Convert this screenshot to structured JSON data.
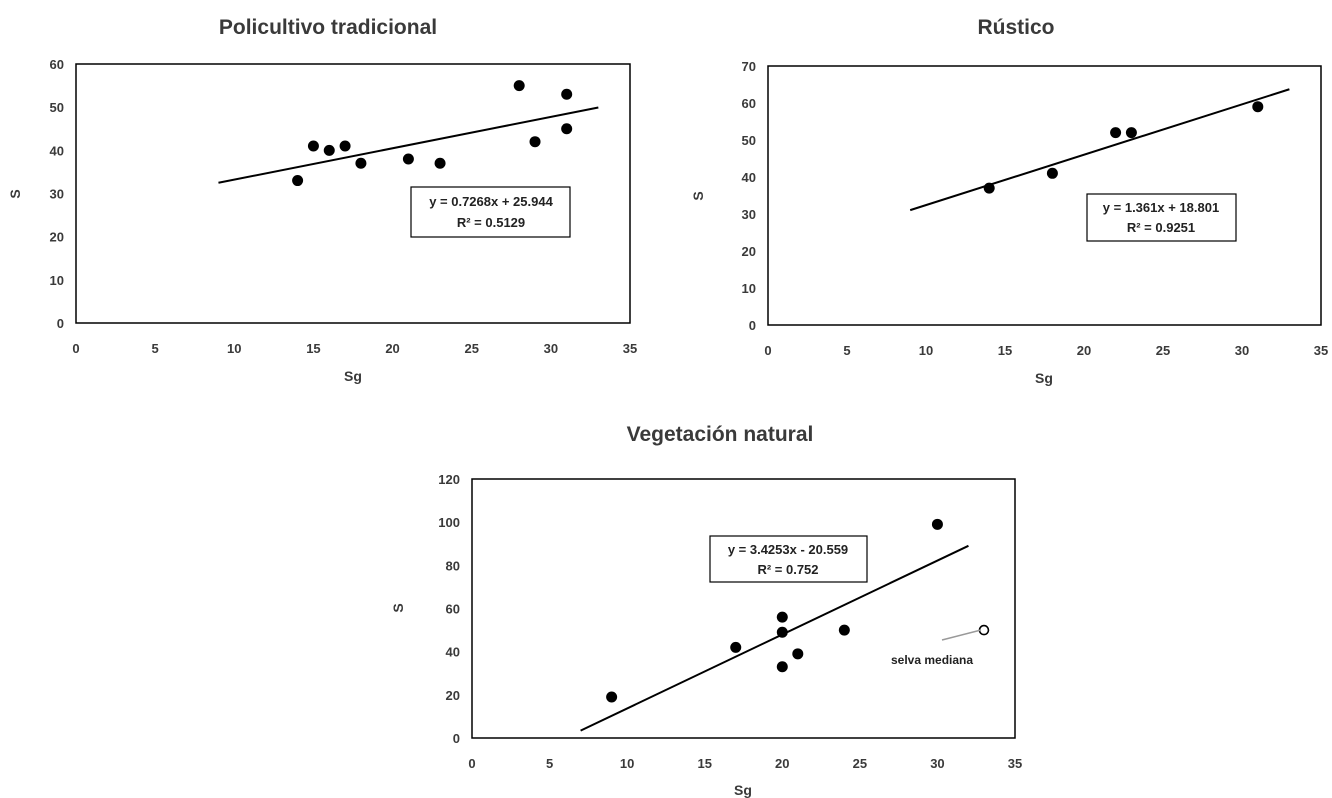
{
  "chart_data": [
    {
      "type": "scatter",
      "title": "Policultivo tradicional",
      "xlabel": "Sg",
      "ylabel": "S",
      "xlim": [
        0,
        35
      ],
      "ylim": [
        0,
        60
      ],
      "xticks": [
        0,
        5,
        10,
        15,
        20,
        25,
        30,
        35
      ],
      "yticks": [
        0,
        10,
        20,
        30,
        40,
        50,
        60
      ],
      "points": [
        {
          "x": 14,
          "y": 33
        },
        {
          "x": 15,
          "y": 41
        },
        {
          "x": 16,
          "y": 40
        },
        {
          "x": 17,
          "y": 41
        },
        {
          "x": 18,
          "y": 37
        },
        {
          "x": 21,
          "y": 38
        },
        {
          "x": 23,
          "y": 37
        },
        {
          "x": 28,
          "y": 55
        },
        {
          "x": 29,
          "y": 42
        },
        {
          "x": 31,
          "y": 53
        },
        {
          "x": 31,
          "y": 45
        }
      ],
      "trendline": {
        "slope": 0.7268,
        "intercept": 25.944,
        "x_range": [
          9,
          33
        ]
      },
      "equation": "y = 0.7268x + 25.944",
      "r2": "R² = 0.5129",
      "grid": false
    },
    {
      "type": "scatter",
      "title": "Rústico",
      "xlabel": "Sg",
      "ylabel": "S",
      "xlim": [
        0,
        35
      ],
      "ylim": [
        0,
        70
      ],
      "xticks": [
        0,
        5,
        10,
        15,
        20,
        25,
        30,
        35
      ],
      "yticks": [
        0,
        10,
        20,
        30,
        40,
        50,
        60,
        70
      ],
      "points": [
        {
          "x": 14,
          "y": 37
        },
        {
          "x": 18,
          "y": 41
        },
        {
          "x": 22,
          "y": 52
        },
        {
          "x": 23,
          "y": 52
        },
        {
          "x": 31,
          "y": 59
        }
      ],
      "trendline": {
        "slope": 1.361,
        "intercept": 18.801,
        "x_range": [
          9,
          33
        ]
      },
      "equation": "y = 1.361x + 18.801",
      "r2": "R² = 0.9251",
      "grid": false
    },
    {
      "type": "scatter",
      "title": "Vegetación natural",
      "xlabel": "Sg",
      "ylabel": "S",
      "xlim": [
        0,
        35
      ],
      "ylim": [
        0,
        120
      ],
      "xticks": [
        0,
        5,
        10,
        15,
        20,
        25,
        30,
        35
      ],
      "yticks": [
        0,
        20,
        40,
        60,
        80,
        100,
        120
      ],
      "points": [
        {
          "x": 9,
          "y": 19
        },
        {
          "x": 17,
          "y": 42
        },
        {
          "x": 20,
          "y": 56
        },
        {
          "x": 20,
          "y": 49
        },
        {
          "x": 20,
          "y": 33
        },
        {
          "x": 21,
          "y": 39
        },
        {
          "x": 24,
          "y": 50
        },
        {
          "x": 30,
          "y": 99
        }
      ],
      "outlier": {
        "x": 33,
        "y": 50,
        "label": "selva mediana",
        "marker": "open-circle"
      },
      "trendline": {
        "slope": 3.4253,
        "intercept": -20.559,
        "x_range": [
          7,
          32
        ]
      },
      "equation": "y = 3.4253x - 20.559",
      "r2": "R² = 0.752",
      "grid": false
    }
  ],
  "colors": {
    "marker": "#000000",
    "line": "#000000",
    "text": "#3a3a3a",
    "annotation_leader": "#999999"
  }
}
